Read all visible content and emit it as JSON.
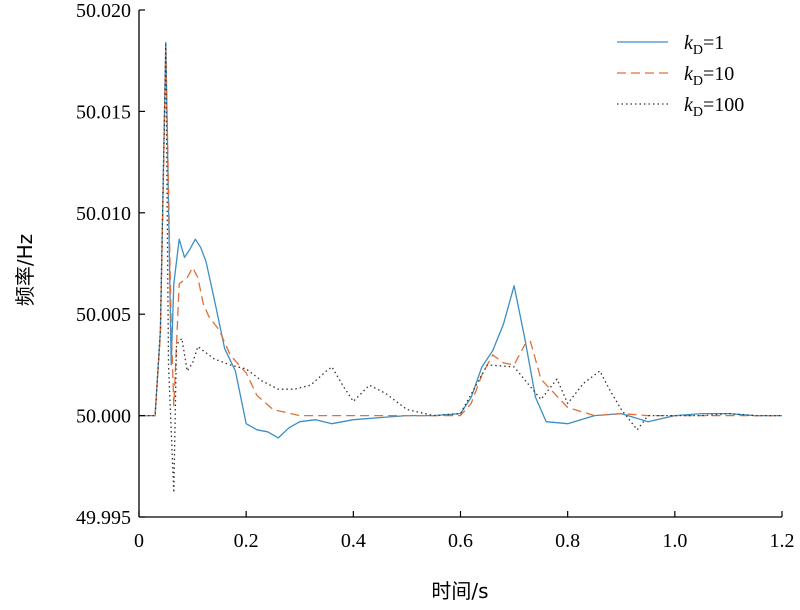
{
  "chart_data": {
    "type": "line",
    "title": "",
    "xlabel": "时间/s",
    "ylabel": "频率/Hz",
    "xlim": [
      0,
      1.2
    ],
    "ylim": [
      49.995,
      50.02
    ],
    "xticks": [
      "0",
      "0.2",
      "0.4",
      "0.6",
      "0.8",
      "1.0",
      "1.2"
    ],
    "yticks": [
      "49.995",
      "50.000",
      "50.005",
      "50.010",
      "50.015",
      "50.020"
    ],
    "grid": false,
    "legend_position": "top-right",
    "series": [
      {
        "name": "kD=1",
        "legend_main": "k",
        "legend_sub": "D",
        "legend_value": "=1",
        "color": "#3c8ec4",
        "style": "solid",
        "x": [
          0,
          0.03,
          0.04,
          0.05,
          0.06,
          0.065,
          0.075,
          0.085,
          0.095,
          0.105,
          0.115,
          0.125,
          0.14,
          0.16,
          0.18,
          0.2,
          0.22,
          0.24,
          0.26,
          0.28,
          0.3,
          0.33,
          0.36,
          0.4,
          0.45,
          0.5,
          0.55,
          0.6,
          0.62,
          0.64,
          0.66,
          0.68,
          0.7,
          0.72,
          0.74,
          0.76,
          0.8,
          0.85,
          0.9,
          0.95,
          1.0,
          1.05,
          1.1,
          1.15,
          1.2
        ],
        "y": [
          50.0,
          50.0,
          50.0042,
          50.0184,
          50.0025,
          50.0065,
          50.0087,
          50.0078,
          50.0082,
          50.0087,
          50.0083,
          50.0076,
          50.0058,
          50.0033,
          50.0022,
          49.9996,
          49.9993,
          49.9992,
          49.9989,
          49.9994,
          49.9997,
          49.9998,
          49.9996,
          49.9998,
          49.9999,
          50.0,
          50.0,
          50.0001,
          50.0009,
          50.0024,
          50.0032,
          50.0045,
          50.0064,
          50.0038,
          50.0009,
          49.9997,
          49.9996,
          50.0,
          50.0001,
          49.9997,
          50.0,
          50.0001,
          50.0001,
          50.0,
          50.0
        ]
      },
      {
        "name": "kD=10",
        "legend_main": "k",
        "legend_sub": "D",
        "legend_value": "=10",
        "color": "#e0703a",
        "style": "dashed",
        "x": [
          0,
          0.03,
          0.04,
          0.05,
          0.06,
          0.065,
          0.075,
          0.09,
          0.1,
          0.11,
          0.12,
          0.13,
          0.15,
          0.17,
          0.2,
          0.22,
          0.25,
          0.3,
          0.35,
          0.4,
          0.45,
          0.5,
          0.55,
          0.6,
          0.62,
          0.64,
          0.66,
          0.68,
          0.7,
          0.72,
          0.73,
          0.75,
          0.8,
          0.85,
          0.9,
          0.95,
          1.0,
          1.05,
          1.1,
          1.15,
          1.2
        ],
        "y": [
          50.0,
          50.0,
          50.004,
          50.018,
          50.0045,
          50.0005,
          50.0065,
          50.0068,
          50.0073,
          50.0068,
          50.0055,
          50.0049,
          50.0042,
          50.003,
          50.0021,
          50.001,
          50.0003,
          50.0,
          50.0,
          50.0,
          50.0,
          50.0,
          50.0,
          50.0,
          50.0006,
          50.002,
          50.003,
          50.0026,
          50.0025,
          50.0035,
          50.0037,
          50.0018,
          50.0004,
          50.0,
          50.0001,
          50.0,
          50.0,
          50.0,
          50.0,
          50.0,
          50.0
        ]
      },
      {
        "name": "kD=100",
        "legend_main": "k",
        "legend_sub": "D",
        "legend_value": "=100",
        "color": "#333333",
        "style": "dotted",
        "x": [
          0,
          0.03,
          0.04,
          0.05,
          0.055,
          0.065,
          0.07,
          0.08,
          0.09,
          0.1,
          0.11,
          0.12,
          0.14,
          0.17,
          0.2,
          0.23,
          0.26,
          0.29,
          0.32,
          0.35,
          0.36,
          0.38,
          0.4,
          0.43,
          0.46,
          0.5,
          0.55,
          0.6,
          0.65,
          0.7,
          0.75,
          0.78,
          0.8,
          0.83,
          0.86,
          0.88,
          0.9,
          0.93,
          0.95,
          1.0,
          1.05,
          1.1,
          1.15,
          1.2
        ],
        "y": [
          50.0,
          50.0,
          50.0042,
          50.0183,
          50.0025,
          49.9962,
          50.0035,
          50.0038,
          50.0022,
          50.0026,
          50.0034,
          50.0032,
          50.0028,
          50.0025,
          50.0023,
          50.0017,
          50.0013,
          50.0013,
          50.0015,
          50.0022,
          50.0024,
          50.0015,
          50.0007,
          50.0015,
          50.0011,
          50.0003,
          50.0,
          50.0001,
          50.0025,
          50.0024,
          50.0008,
          50.0018,
          50.0006,
          50.0016,
          50.0022,
          50.0012,
          50.0003,
          49.9993,
          50.0,
          50.0,
          50.0,
          50.0001,
          50.0,
          50.0
        ]
      }
    ]
  }
}
